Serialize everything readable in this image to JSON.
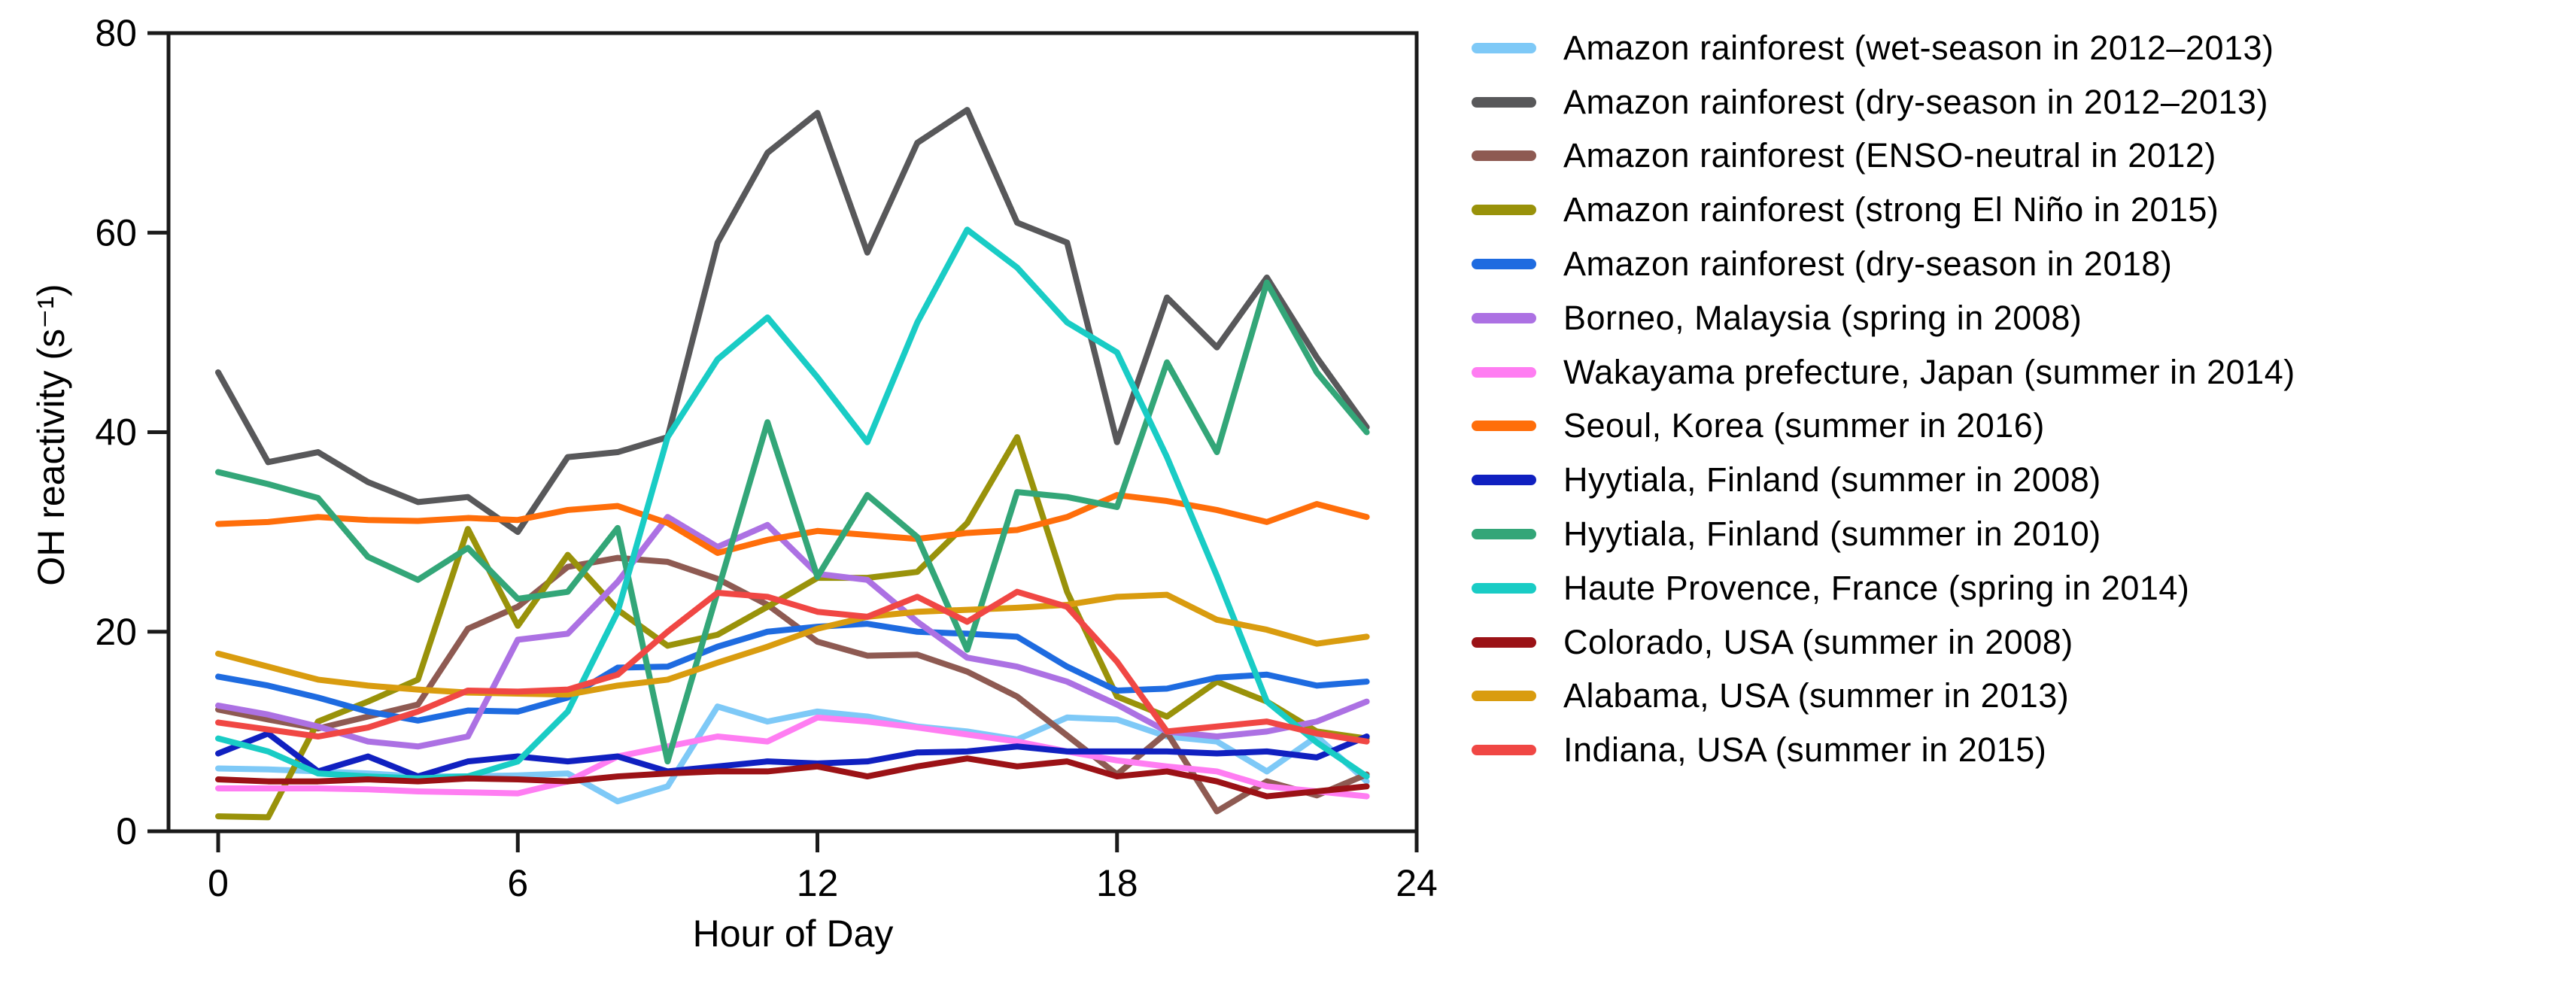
{
  "figure": {
    "kind": "scientific line chart",
    "background": "#ffffff",
    "spine_color": "#1a1a1a"
  },
  "chart_data": {
    "type": "line",
    "title": "",
    "xlabel": "Hour of Day",
    "ylabel": "OH reactivity (s⁻¹)",
    "xlim": [
      0,
      24
    ],
    "ylim": [
      0,
      80
    ],
    "xticks": [
      0,
      6,
      12,
      18,
      24
    ],
    "yticks": [
      0,
      20,
      40,
      60,
      80
    ],
    "grid": false,
    "legend_position": "right",
    "x": [
      0,
      1,
      2,
      3,
      4,
      5,
      6,
      7,
      8,
      9,
      10,
      11,
      12,
      13,
      14,
      15,
      16,
      17,
      18,
      19,
      20,
      21,
      22,
      23
    ],
    "series": [
      {
        "name": "Amazon rainforest (wet-season in 2012–2013)",
        "color": "#7EC9F7",
        "values": [
          6.3,
          6.2,
          6,
          5.8,
          5.5,
          5.5,
          5.6,
          5.8,
          3,
          4.5,
          12.5,
          11,
          12,
          11.5,
          10.5,
          10,
          9.2,
          11.4,
          11.2,
          9.5,
          9,
          6,
          9.5,
          5
        ]
      },
      {
        "name": "Amazon rainforest (dry-season in 2012–2013)",
        "color": "#58585A",
        "values": [
          46,
          37,
          38,
          35,
          33,
          33.5,
          30,
          37.5,
          38,
          39.5,
          59,
          68,
          72,
          58,
          69,
          72.3,
          61,
          59,
          39,
          53.5,
          48.5,
          55.5,
          47.5,
          40.5
        ]
      },
      {
        "name": "Amazon rainforest (ENSO-neutral in 2012)",
        "color": "#8E5A52",
        "values": [
          12.2,
          11.2,
          10.3,
          11.5,
          12.7,
          20.3,
          22.5,
          26.5,
          27.4,
          27,
          25.3,
          22.7,
          19,
          17.6,
          17.7,
          16,
          13.5,
          9.6,
          5.7,
          9.9,
          2,
          5,
          3.6,
          5.7
        ]
      },
      {
        "name": "Amazon rainforest (strong El Niño in 2015)",
        "color": "#99920A",
        "values": [
          1.5,
          1.4,
          11,
          13,
          15.2,
          30.3,
          20.6,
          27.7,
          22.2,
          18.6,
          19.7,
          22.5,
          25.4,
          25.4,
          26,
          30.9,
          39.5,
          24,
          13.5,
          11.5,
          15,
          13,
          10,
          9.3
        ]
      },
      {
        "name": "Amazon rainforest (dry-season in 2018)",
        "color": "#1E6BE0",
        "values": [
          15.5,
          14.6,
          13.4,
          12,
          11.1,
          12.1,
          12,
          13.4,
          16.4,
          16.5,
          18.5,
          20,
          20.5,
          20.8,
          20,
          19.8,
          19.5,
          16.5,
          14.1,
          14.3,
          15.4,
          15.7,
          14.6,
          15
        ]
      },
      {
        "name": "Borneo, Malaysia (spring in 2008)",
        "color": "#AC71E3",
        "values": [
          12.6,
          11.7,
          10.5,
          9,
          8.5,
          9.5,
          19.2,
          19.8,
          25,
          31.5,
          28.5,
          30.7,
          25.8,
          25.2,
          21,
          17.4,
          16.5,
          15,
          12.7,
          10,
          9.5,
          10,
          11,
          13
        ]
      },
      {
        "name": "Wakayama prefecture, Japan (summer in 2014)",
        "color": "#FF7DF2",
        "values": [
          4.3,
          4.3,
          4.3,
          4.2,
          4,
          3.9,
          3.8,
          5,
          7.5,
          8.5,
          9.5,
          9,
          11.4,
          11,
          10.4,
          9.7,
          9,
          8,
          7.1,
          6.5,
          6,
          4.5,
          4,
          3.5
        ]
      },
      {
        "name": "Seoul, Korea (summer in 2016)",
        "color": "#FF6E0A",
        "values": [
          30.8,
          31,
          31.5,
          31.2,
          31.1,
          31.4,
          31.2,
          32.2,
          32.6,
          30.9,
          27.9,
          29.2,
          30.1,
          29.7,
          29.3,
          29.9,
          30.2,
          31.5,
          33.7,
          33.1,
          32.2,
          31,
          32.8,
          31.5
        ]
      },
      {
        "name": "Hyytiala, Finland (summer in 2008)",
        "color": "#1020C0",
        "values": [
          7.8,
          9.8,
          6,
          7.5,
          5.5,
          7,
          7.5,
          7,
          7.5,
          6,
          6.5,
          7,
          6.8,
          7,
          7.9,
          8,
          8.5,
          8,
          8,
          8,
          7.8,
          8,
          7.4,
          9.5
        ]
      },
      {
        "name": "Hyytiala, Finland (summer in 2010)",
        "color": "#33A678",
        "values": [
          36,
          34.8,
          33.4,
          27.5,
          25.2,
          28.4,
          23.3,
          24,
          30.4,
          7,
          24,
          41,
          25.5,
          33.7,
          29.5,
          18.2,
          34,
          33.5,
          32.5,
          47,
          38,
          55,
          46,
          40
        ]
      },
      {
        "name": "Haute Provence, France (spring in 2014)",
        "color": "#19CCC5",
        "values": [
          9.3,
          8,
          5.8,
          5.5,
          5.3,
          5.5,
          7,
          12,
          22,
          39.5,
          47.3,
          51.5,
          45.5,
          39,
          51,
          60.3,
          56.5,
          51,
          48,
          37.5,
          25.6,
          13,
          8.9,
          5.5
        ]
      },
      {
        "name": "Colorado,  USA (summer in 2008)",
        "color": "#9B1216",
        "values": [
          5.2,
          5,
          5,
          5.2,
          5,
          5.3,
          5.2,
          5,
          5.5,
          5.8,
          6,
          6,
          6.5,
          5.5,
          6.5,
          7.3,
          6.5,
          7,
          5.5,
          6,
          5,
          3.5,
          4,
          4.5
        ]
      },
      {
        "name": "Alabama,  USA (summer in 2013)",
        "color": "#D99C0F",
        "values": [
          17.8,
          16.5,
          15.2,
          14.6,
          14.2,
          13.9,
          13.8,
          13.7,
          14.6,
          15.2,
          16.9,
          18.5,
          20.3,
          21.5,
          22,
          22.2,
          22.4,
          22.7,
          23.5,
          23.7,
          21.2,
          20.2,
          18.8,
          19.5
        ]
      },
      {
        "name": "Indiana,  USA (summer in 2015)",
        "color": "#F04744",
        "values": [
          10.9,
          10.2,
          9.5,
          10.4,
          12,
          14.1,
          14,
          14.2,
          15.7,
          20,
          23.9,
          23.5,
          22,
          21.5,
          23.5,
          21,
          24,
          22.5,
          17,
          10,
          10.5,
          11,
          9.8,
          9
        ]
      }
    ],
    "plot_geometry": {
      "frame_left": 224,
      "frame_right": 1883,
      "frame_top": 44,
      "frame_bottom": 1105,
      "x_of_hour0": 290,
      "x_of_hour24": 1883,
      "line_width": 8,
      "spine_width": 5,
      "tick_length": 28
    }
  }
}
